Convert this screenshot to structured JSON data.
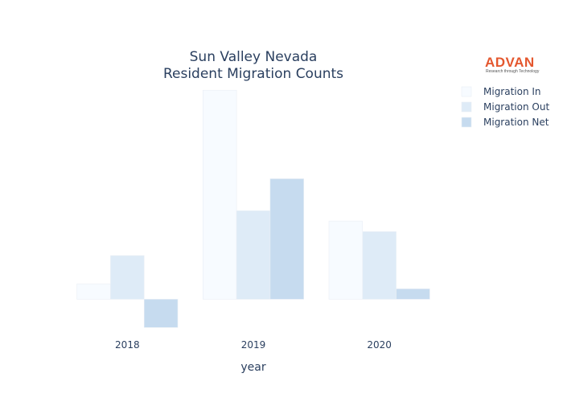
{
  "logo": {
    "name": "ADVAN",
    "tagline": "Research through Technology"
  },
  "chart_data": {
    "type": "bar",
    "title_lines": [
      "Sun Valley Nevada",
      "Resident Migration Counts"
    ],
    "xlabel": "year",
    "ylabel": "",
    "categories": [
      "2018",
      "2019",
      "2020"
    ],
    "series": [
      {
        "name": "Migration In",
        "color": "#f7fbff",
        "values": [
          25,
          340,
          127
        ]
      },
      {
        "name": "Migration Out",
        "color": "#deebf7",
        "values": [
          71,
          144,
          110
        ]
      },
      {
        "name": "Migration Net",
        "color": "#c6dbef",
        "values": [
          -46,
          196,
          17
        ]
      }
    ],
    "ylim": [
      -56,
      356
    ],
    "grid": false,
    "legend_position": "top-right"
  }
}
